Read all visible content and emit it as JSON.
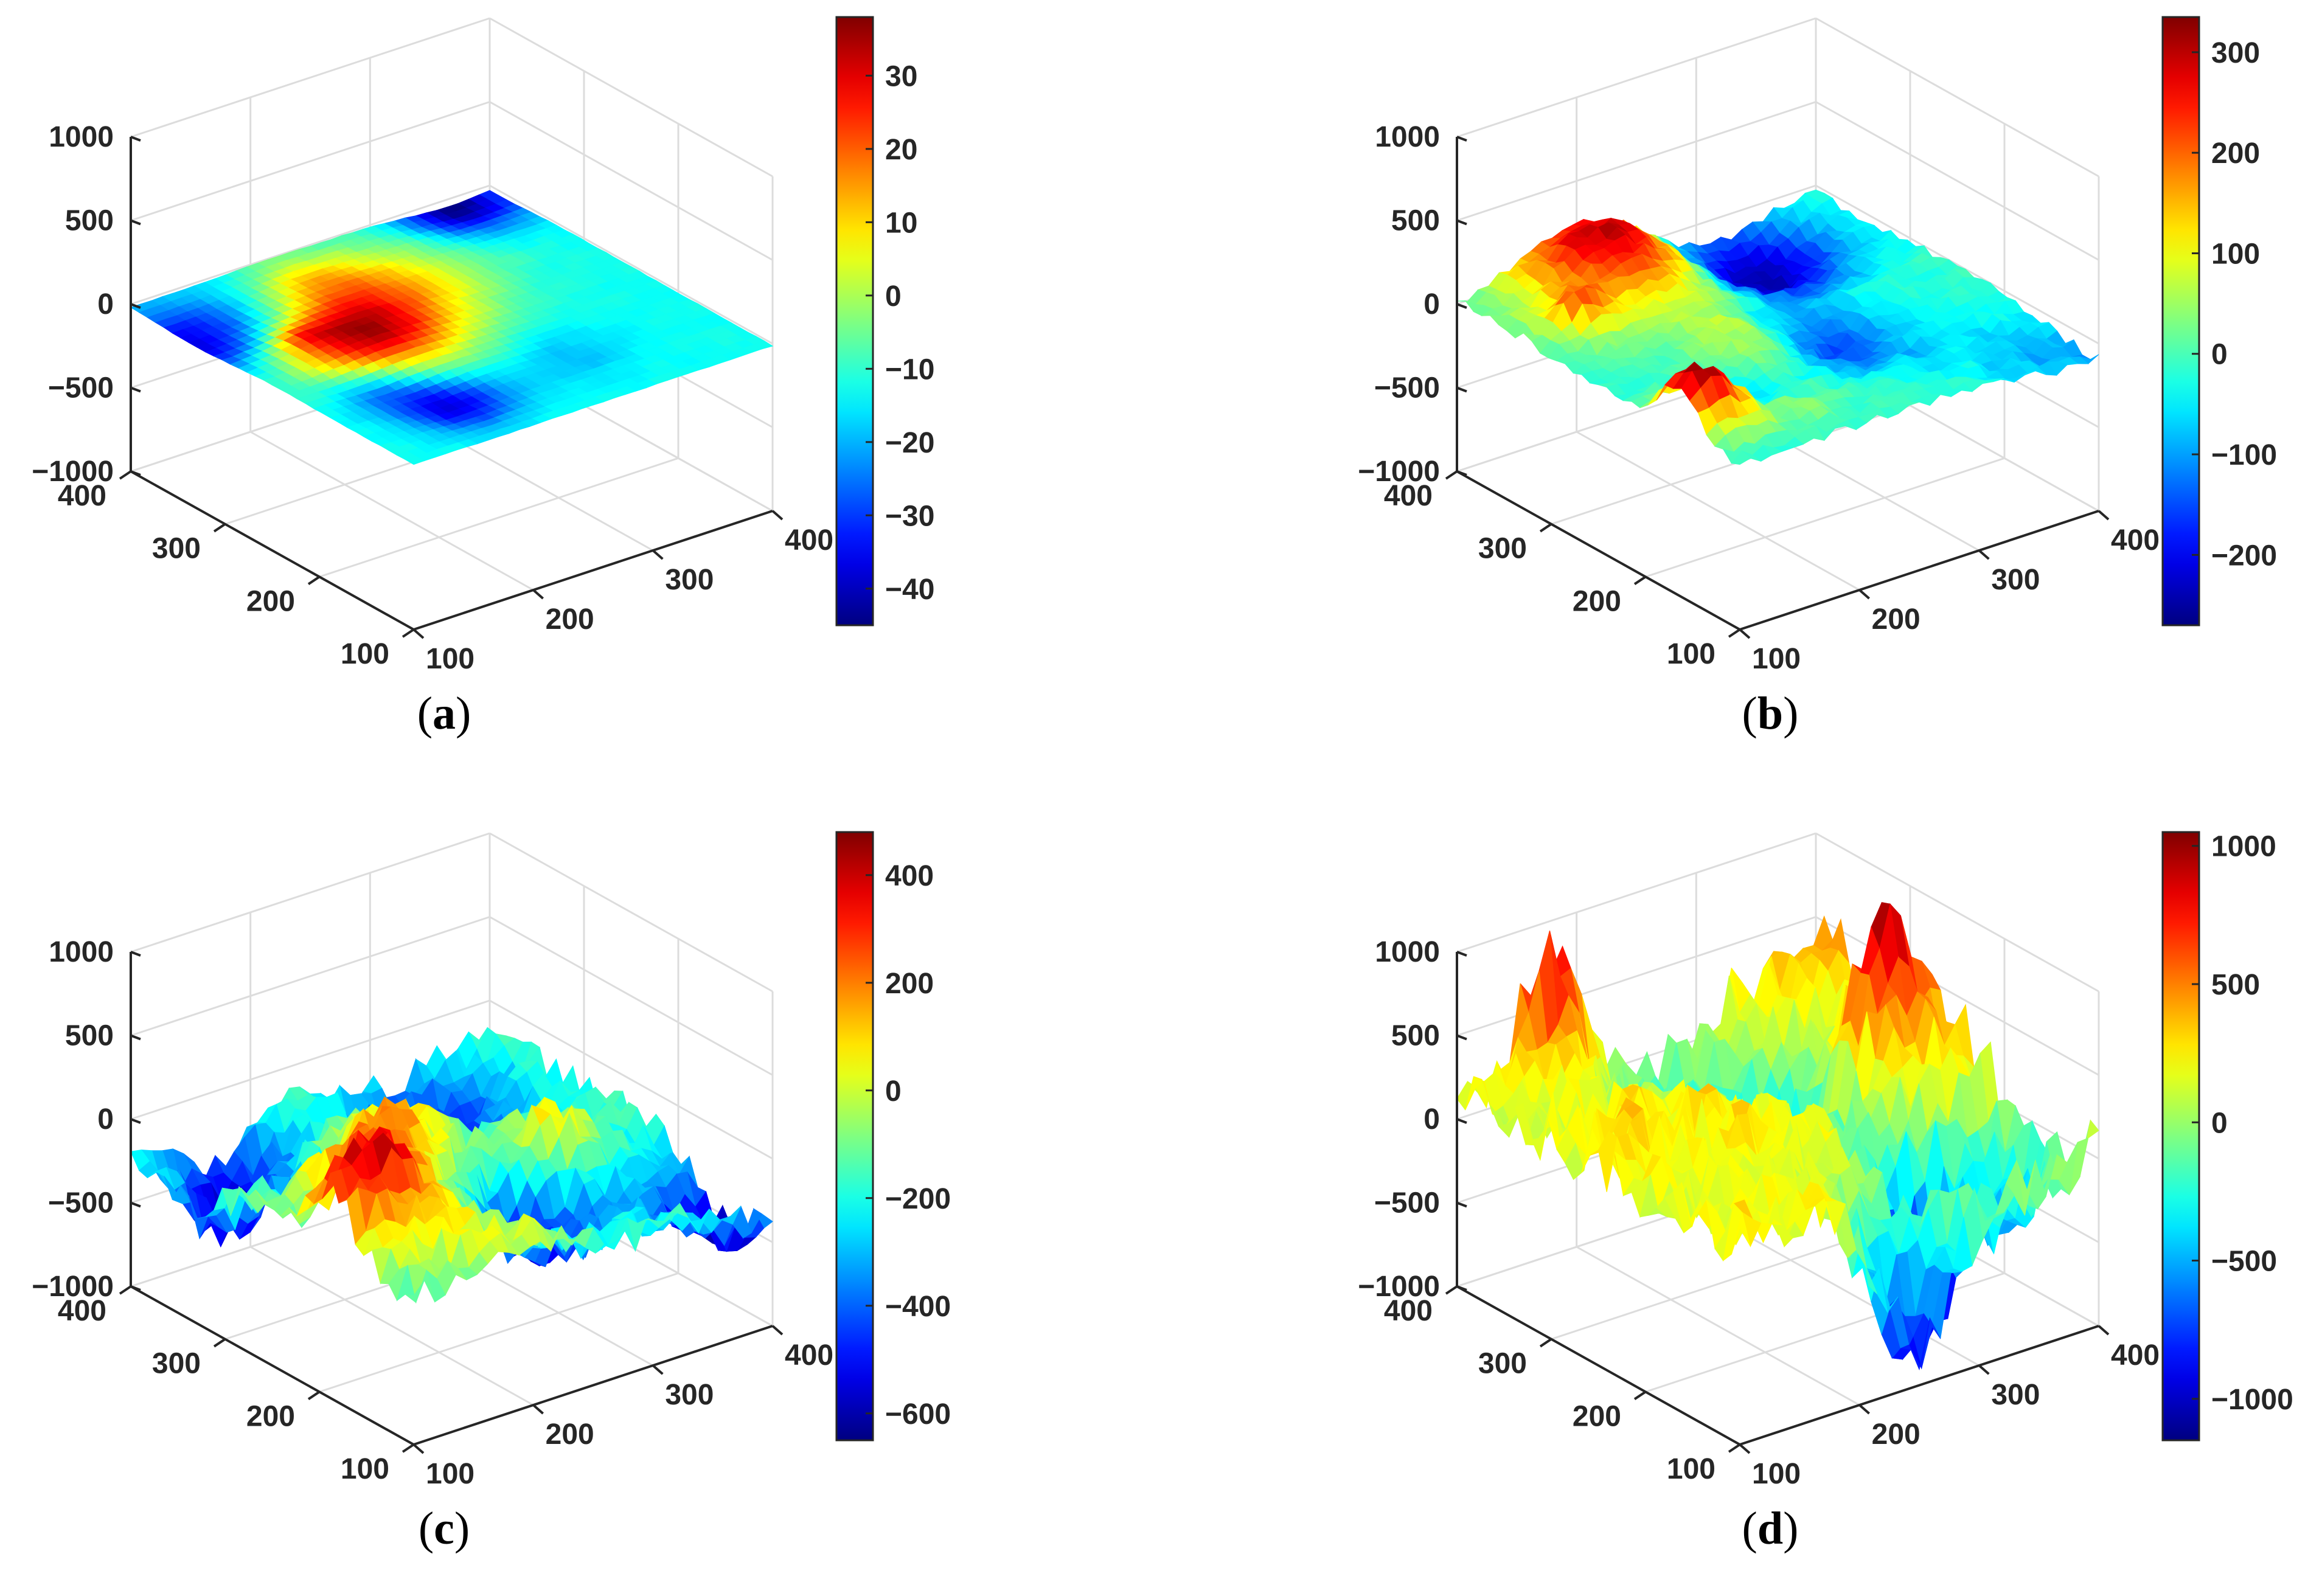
{
  "chart_data": [
    {
      "type": "surface3d",
      "panel": "a",
      "colormap": "jet",
      "zlim": [
        -1000,
        1000
      ],
      "z_ticks": [
        "1000",
        "500",
        "0",
        "−500",
        "−1000"
      ],
      "x_ticks": [
        "100",
        "200",
        "300",
        "400"
      ],
      "y_ticks": [
        "100",
        "200",
        "300",
        "400"
      ],
      "colorbar": {
        "min": -45,
        "max": 38,
        "ticks": [
          30,
          20,
          10,
          0,
          -10,
          -20,
          -30,
          -40
        ],
        "tick_labels": [
          "30",
          "20",
          "10",
          "0",
          "−10",
          "−20",
          "−30",
          "−40"
        ]
      },
      "label": "a",
      "surface": {
        "min": -45,
        "max": 38,
        "amplitude": 38,
        "roughness": 0.15,
        "seed": 3
      }
    },
    {
      "type": "surface3d",
      "panel": "b",
      "colormap": "jet",
      "zlim": [
        -1000,
        1000
      ],
      "z_ticks": [
        "1000",
        "500",
        "0",
        "−500",
        "−1000"
      ],
      "x_ticks": [
        "100",
        "200",
        "300",
        "400"
      ],
      "y_ticks": [
        "100",
        "200",
        "300",
        "400"
      ],
      "colorbar": {
        "min": -270,
        "max": 335,
        "ticks": [
          300,
          200,
          100,
          0,
          -100,
          -200
        ],
        "tick_labels": [
          "300",
          "200",
          "100",
          "0",
          "−100",
          "−200"
        ]
      },
      "label": "b",
      "surface": {
        "min": -270,
        "max": 335,
        "amplitude": 300,
        "roughness": 0.35,
        "seed": 11
      }
    },
    {
      "type": "surface3d",
      "panel": "c",
      "colormap": "jet",
      "zlim": [
        -1000,
        1000
      ],
      "z_ticks": [
        "1000",
        "500",
        "0",
        "−500",
        "−1000"
      ],
      "x_ticks": [
        "100",
        "200",
        "300",
        "400"
      ],
      "y_ticks": [
        "100",
        "200",
        "300",
        "400"
      ],
      "colorbar": {
        "min": -650,
        "max": 480,
        "ticks": [
          400,
          200,
          0,
          -200,
          -400,
          -600
        ],
        "tick_labels": [
          "400",
          "200",
          "0",
          "−200",
          "−400",
          "−600"
        ]
      },
      "label": "c",
      "surface": {
        "min": -650,
        "max": 480,
        "amplitude": 560,
        "roughness": 0.45,
        "seed": 23
      }
    },
    {
      "type": "surface3d",
      "panel": "d",
      "colormap": "jet",
      "zlim": [
        -1000,
        1000
      ],
      "z_ticks": [
        "1000",
        "500",
        "0",
        "−500",
        "−1000"
      ],
      "x_ticks": [
        "100",
        "200",
        "300",
        "400"
      ],
      "y_ticks": [
        "100",
        "200",
        "300",
        "400"
      ],
      "colorbar": {
        "min": -1150,
        "max": 1050,
        "ticks": [
          1000,
          500,
          0,
          -500,
          -1000
        ],
        "tick_labels": [
          "1000",
          "500",
          "0",
          "−500",
          "−1000"
        ]
      },
      "label": "d",
      "surface": {
        "min": -1150,
        "max": 1050,
        "amplitude": 1000,
        "roughness": 0.55,
        "seed": 41
      }
    }
  ]
}
